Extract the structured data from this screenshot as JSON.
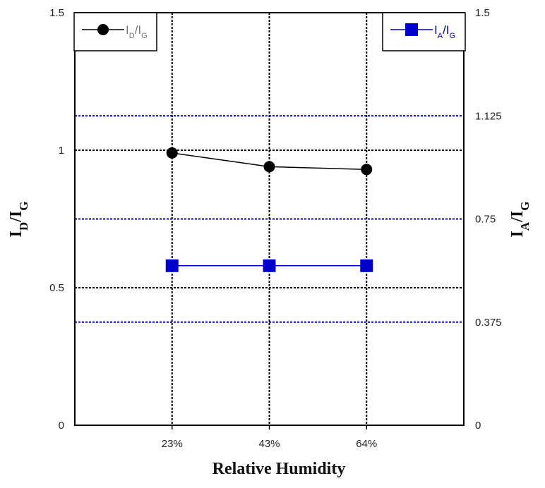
{
  "chart_data": {
    "type": "line",
    "categories": [
      "23%",
      "43%",
      "64%"
    ],
    "xlabel": "Relative Humidity",
    "ylabel_left": {
      "main1": "I",
      "sub1": "D",
      "main2": "/I",
      "sub2": "G"
    },
    "ylabel_right": {
      "main1": "I",
      "sub1": "A",
      "main2": "/I",
      "sub2": "G"
    },
    "y_left": {
      "lim": [
        0,
        1.5
      ],
      "ticks": [
        0,
        0.5,
        1,
        1.5
      ],
      "tick_labels": [
        "0",
        "0.5",
        "1",
        "1.5"
      ]
    },
    "y_right": {
      "lim": [
        0,
        1.5
      ],
      "ticks": [
        0,
        0.375,
        0.75,
        1.125,
        1.5
      ],
      "tick_labels": [
        "0",
        "0.375",
        "0.75",
        "1.125",
        "1.5"
      ]
    },
    "series": [
      {
        "name": "ID/IG",
        "legend": {
          "p1": "I",
          "s1": "D",
          "p2": "/I",
          "s2": "G"
        },
        "axis": "left",
        "marker": "circle",
        "color": "#000000",
        "values": [
          0.99,
          0.94,
          0.93
        ]
      },
      {
        "name": "IA/IG",
        "legend": {
          "p1": "I",
          "s1": "A",
          "p2": "/I",
          "s2": "G"
        },
        "axis": "right",
        "marker": "square",
        "color": "#0000cc",
        "values": [
          0.58,
          0.58,
          0.58
        ]
      }
    ],
    "grid": {
      "vertical": true,
      "left_horizontal": true,
      "right_horizontal": true,
      "left_color": "#000000",
      "right_color": "#0000aa"
    }
  }
}
